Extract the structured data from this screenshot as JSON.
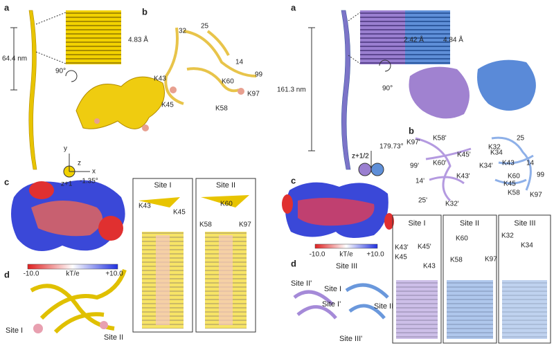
{
  "left": {
    "a": {
      "label": "a",
      "length": "64.4 nm",
      "spacing": "4.83 Å",
      "rotation": "90°",
      "axis_y": "y",
      "axis_z": "z",
      "axis_x": "x",
      "axis_z1": "z+1",
      "twist": "-1.35°"
    },
    "b": {
      "label": "b",
      "residues": [
        "32",
        "25",
        "14",
        "99",
        "K43",
        "K60",
        "K97",
        "K45",
        "K58"
      ]
    },
    "c": {
      "label": "c",
      "scale_min": "-10.0",
      "scale_unit": "kT/e",
      "scale_max": "+10.0",
      "sites": [
        {
          "title": "Site I",
          "residues": [
            "K43",
            "K45"
          ]
        },
        {
          "title": "Site II",
          "residues": [
            "K60",
            "K58",
            "K97"
          ]
        }
      ]
    },
    "d": {
      "label": "d",
      "sites": [
        "Site I",
        "Site II"
      ]
    }
  },
  "right": {
    "a": {
      "label": "a",
      "length": "161.3 nm",
      "spacing_a": "2.42 Å",
      "spacing_b": "4.84 Å",
      "rotation": "90°",
      "axis_z": "z+1/2",
      "twist": "179.73°"
    },
    "b": {
      "label": "b",
      "residues": [
        "K97'",
        "K58'",
        "K60'",
        "K45'",
        "99'",
        "K43'",
        "14'",
        "25'",
        "K32'",
        "K34'",
        "K32",
        "25",
        "K34",
        "K43",
        "14",
        "K60",
        "99",
        "K45",
        "K58",
        "K97"
      ]
    },
    "c": {
      "label": "c",
      "scale_min": "-10.0",
      "scale_unit": "kT/e",
      "scale_max": "+10.0",
      "sites": [
        {
          "title": "Site I",
          "residues": [
            "K43'",
            "K45'",
            "K45",
            "K43"
          ]
        },
        {
          "title": "Site II",
          "residues": [
            "K60",
            "K58",
            "K97"
          ]
        },
        {
          "title": "Site III",
          "residues": [
            "K32",
            "K34"
          ]
        }
      ]
    },
    "d": {
      "label": "d",
      "sites": [
        "Site III",
        "Site II'",
        "Site I",
        "Site I'",
        "Site II",
        "Site III'"
      ]
    }
  }
}
